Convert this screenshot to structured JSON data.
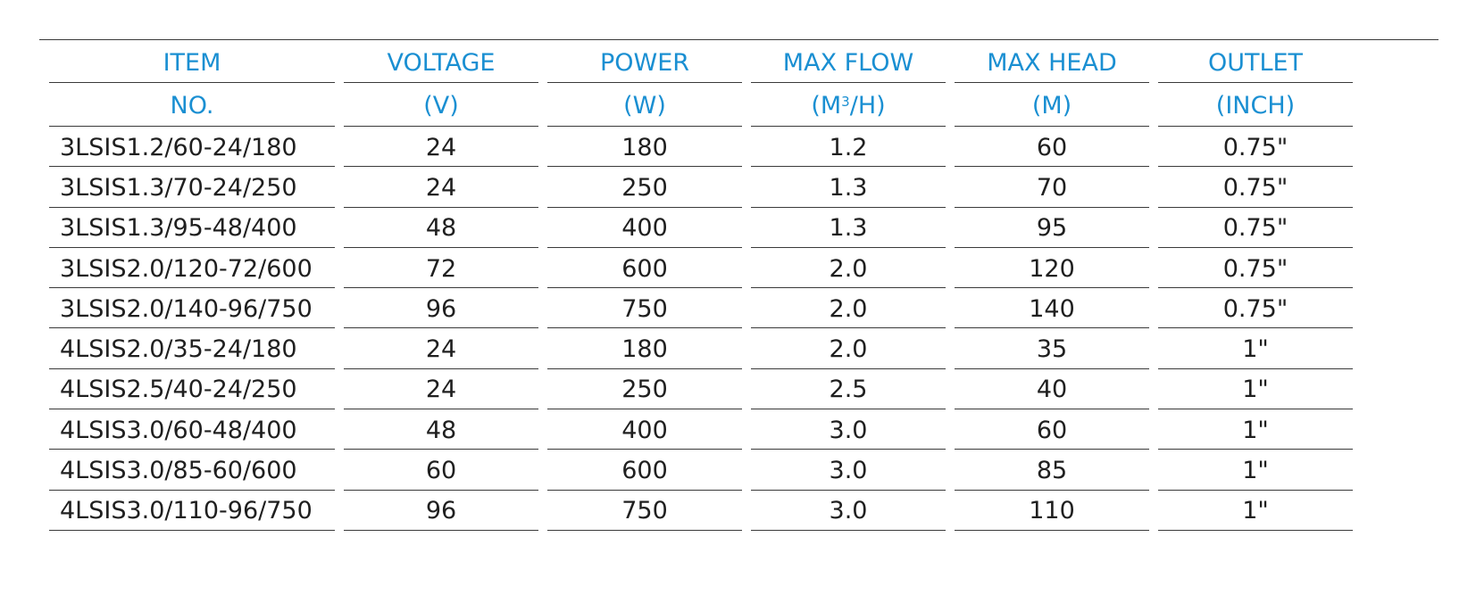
{
  "table": {
    "header_row1": [
      "ITEM",
      "VOLTAGE",
      "POWER",
      "MAX FLOW",
      "MAX HEAD",
      "OUTLET"
    ],
    "header_row2": {
      "item": "NO.",
      "voltage": "(V)",
      "power": "(W)",
      "flow_prefix": "(M",
      "flow_sup": "3",
      "flow_suffix": "/H)",
      "head": "(M)",
      "outlet": "(INCH)"
    },
    "rows": [
      [
        "3LSIS1.2/60-24/180",
        "24",
        "180",
        "1.2",
        "60",
        "0.75\""
      ],
      [
        "3LSIS1.3/70-24/250",
        "24",
        "250",
        "1.3",
        "70",
        "0.75\""
      ],
      [
        "3LSIS1.3/95-48/400",
        "48",
        "400",
        "1.3",
        "95",
        "0.75\""
      ],
      [
        "3LSIS2.0/120-72/600",
        "72",
        "600",
        "2.0",
        "120",
        "0.75\""
      ],
      [
        "3LSIS2.0/140-96/750",
        "96",
        "750",
        "2.0",
        "140",
        "0.75\""
      ],
      [
        "4LSIS2.0/35-24/180",
        "24",
        "180",
        "2.0",
        "35",
        "1\""
      ],
      [
        "4LSIS2.5/40-24/250",
        "24",
        "250",
        "2.5",
        "40",
        "1\""
      ],
      [
        "4LSIS3.0/60-48/400",
        "48",
        "400",
        "3.0",
        "60",
        "1\""
      ],
      [
        "4LSIS3.0/85-60/600",
        "60",
        "600",
        "3.0",
        "85",
        "1\""
      ],
      [
        "4LSIS3.0/110-96/750",
        "96",
        "750",
        "3.0",
        "110",
        "1\""
      ]
    ]
  },
  "colors": {
    "header_text": "#1a8fd2",
    "body_text": "#1f1f1f",
    "rule": "#3a3a3a"
  }
}
